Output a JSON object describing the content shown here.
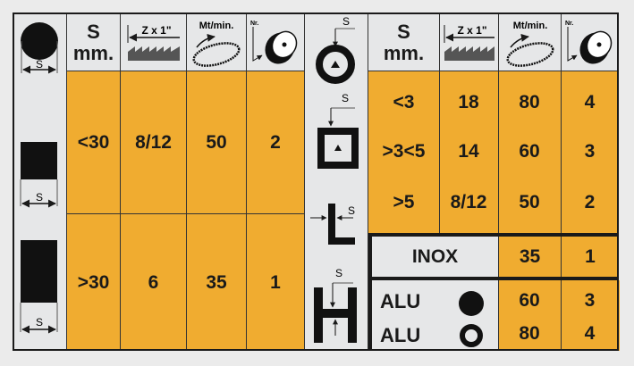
{
  "header": {
    "s_label": "S",
    "mm_label": "mm.",
    "teeth_label": "Z x 1\"",
    "speed_label": "Mt/min.",
    "nr_label": "Nr.",
    "dim_symbol": "S"
  },
  "left_table": {
    "rows": [
      {
        "s": "<30",
        "z": "8/12",
        "speed": "50",
        "nr": "2"
      },
      {
        "s": ">30",
        "z": "6",
        "speed": "35",
        "nr": "1"
      }
    ]
  },
  "right_table": {
    "rows": [
      {
        "s": "<3",
        "z": "18",
        "speed": "80",
        "nr": "4"
      },
      {
        "s": ">3<5",
        "z": "14",
        "speed": "60",
        "nr": "3"
      },
      {
        "s": ">5",
        "z": "8/12",
        "speed": "50",
        "nr": "2"
      }
    ],
    "inox": {
      "label": "INOX",
      "speed": "35",
      "nr": "1"
    },
    "alu": [
      {
        "label": "ALU",
        "shape": "solid-round",
        "speed": "60",
        "nr": "3"
      },
      {
        "label": "ALU",
        "shape": "tube-round",
        "speed": "80",
        "nr": "4"
      }
    ]
  },
  "colors": {
    "orange": "#f0ac30",
    "gray": "#e6e7e8",
    "line": "#1a1a1a"
  },
  "icons": [
    "round-bar-icon",
    "flat-bar-icon",
    "tall-flat-bar-icon",
    "tube-icon",
    "square-tube-icon",
    "angle-icon",
    "h-beam-icon",
    "saw-teeth-icon",
    "band-speed-icon",
    "wheel-number-icon"
  ]
}
